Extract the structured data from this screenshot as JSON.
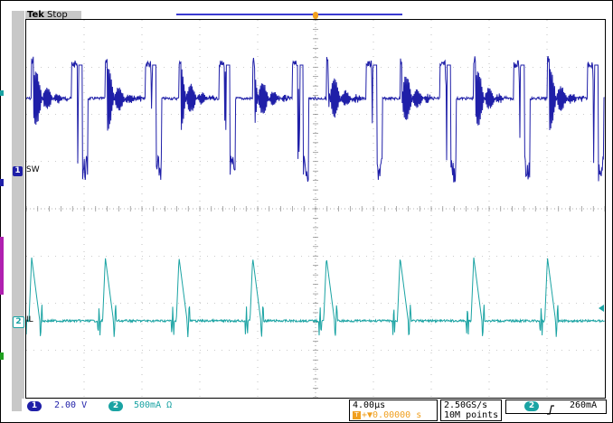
{
  "header": {
    "brand": "Tek",
    "run_state": "Stop",
    "trigger_marker": "T"
  },
  "channels": [
    {
      "id": "1",
      "label": "SW",
      "color": "#1f1fa8",
      "scale": "2.00 V"
    },
    {
      "id": "2",
      "label": "IL",
      "color": "#1aa3a3",
      "scale": "500mA Ω"
    }
  ],
  "status": {
    "timebase": "4.00µs",
    "trigger_offset": "+▼0.00000 s",
    "trigger_badge": "T",
    "sample_rate": "2.50GS/s",
    "record_length": "10M points",
    "trigger_source": "2",
    "trigger_slope_icon": "rising-edge",
    "trigger_level": "260mA"
  },
  "colors": {
    "ch1": "#1f1fa8",
    "ch2": "#1aa3a3",
    "trigger": "#f0a020",
    "frame": "#c8c8c8"
  }
}
